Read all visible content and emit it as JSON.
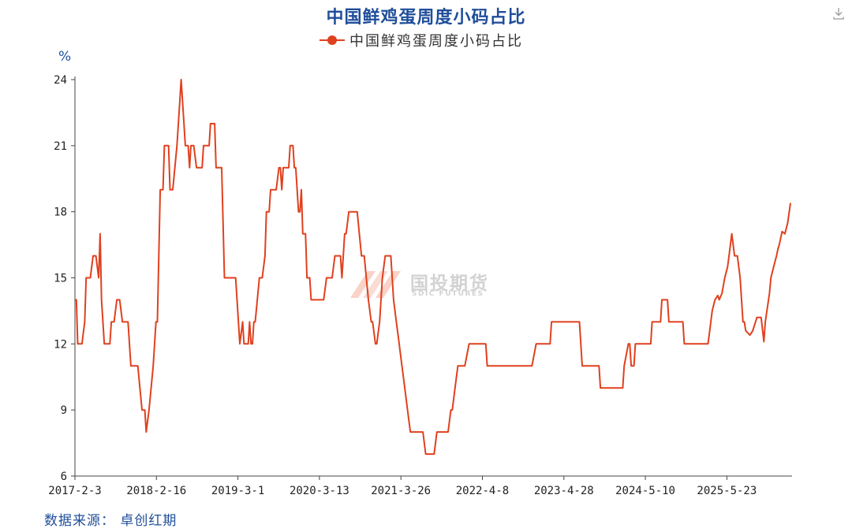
{
  "chart_data": {
    "type": "line",
    "title": "中国鲜鸡蛋周度小码占比",
    "unit_label": "%",
    "legend_position": "top-center",
    "grid": false,
    "ylim": [
      6,
      24
    ],
    "yticks": [
      "6",
      "9",
      "12",
      "15",
      "18",
      "21",
      "24"
    ],
    "xticks": [
      "2017-2-3",
      "2018-2-16",
      "2019-3-1",
      "2020-3-13",
      "2021-3-26",
      "2022-4-8",
      "2023-4-28",
      "2024-5-10",
      "2025-5-23"
    ],
    "series": [
      {
        "name": "中国鲜鸡蛋周度小码占比",
        "color": "#e0401e",
        "points": [
          [
            "2017-02-03",
            14
          ],
          [
            "2017-02-10",
            14
          ],
          [
            "2017-02-17",
            12
          ],
          [
            "2017-03-10",
            12
          ],
          [
            "2017-03-24",
            13
          ],
          [
            "2017-03-31",
            15
          ],
          [
            "2017-04-21",
            15
          ],
          [
            "2017-05-05",
            16
          ],
          [
            "2017-05-19",
            16
          ],
          [
            "2017-06-02",
            15
          ],
          [
            "2017-06-09",
            17
          ],
          [
            "2017-06-16",
            14
          ],
          [
            "2017-06-30",
            12
          ],
          [
            "2017-07-28",
            12
          ],
          [
            "2017-08-04",
            13
          ],
          [
            "2017-08-18",
            13
          ],
          [
            "2017-09-01",
            14
          ],
          [
            "2017-09-15",
            14
          ],
          [
            "2017-09-29",
            13
          ],
          [
            "2017-10-27",
            13
          ],
          [
            "2017-11-10",
            11
          ],
          [
            "2017-12-15",
            11
          ],
          [
            "2018-01-05",
            9
          ],
          [
            "2018-01-19",
            9
          ],
          [
            "2018-01-26",
            8
          ],
          [
            "2018-02-09",
            9
          ],
          [
            "2018-03-02",
            11
          ],
          [
            "2018-03-16",
            13
          ],
          [
            "2018-03-23",
            13
          ],
          [
            "2018-04-06",
            19
          ],
          [
            "2018-04-20",
            19
          ],
          [
            "2018-04-27",
            21
          ],
          [
            "2018-05-18",
            21
          ],
          [
            "2018-05-25",
            19
          ],
          [
            "2018-06-08",
            19
          ],
          [
            "2018-06-29",
            21
          ],
          [
            "2018-07-13",
            23
          ],
          [
            "2018-07-20",
            24
          ],
          [
            "2018-08-03",
            22
          ],
          [
            "2018-08-10",
            21
          ],
          [
            "2018-08-24",
            21
          ],
          [
            "2018-08-31",
            20
          ],
          [
            "2018-09-07",
            21
          ],
          [
            "2018-09-21",
            21
          ],
          [
            "2018-10-05",
            20
          ],
          [
            "2018-11-02",
            20
          ],
          [
            "2018-11-09",
            21
          ],
          [
            "2018-12-07",
            21
          ],
          [
            "2018-12-14",
            22
          ],
          [
            "2019-01-04",
            22
          ],
          [
            "2019-01-11",
            20
          ],
          [
            "2019-02-08",
            20
          ],
          [
            "2019-02-22",
            15
          ],
          [
            "2019-04-19",
            15
          ],
          [
            "2019-05-10",
            12
          ],
          [
            "2019-05-24",
            13
          ],
          [
            "2019-05-31",
            12
          ],
          [
            "2019-06-21",
            12
          ],
          [
            "2019-06-28",
            13
          ],
          [
            "2019-07-05",
            12
          ],
          [
            "2019-07-12",
            12
          ],
          [
            "2019-07-19",
            13
          ],
          [
            "2019-07-26",
            13
          ],
          [
            "2019-08-16",
            15
          ],
          [
            "2019-08-30",
            15
          ],
          [
            "2019-09-13",
            16
          ],
          [
            "2019-09-20",
            18
          ],
          [
            "2019-10-04",
            18
          ],
          [
            "2019-10-11",
            19
          ],
          [
            "2019-11-08",
            19
          ],
          [
            "2019-11-22",
            20
          ],
          [
            "2019-11-29",
            20
          ],
          [
            "2019-12-06",
            19
          ],
          [
            "2019-12-13",
            20
          ],
          [
            "2020-01-10",
            20
          ],
          [
            "2020-01-17",
            21
          ],
          [
            "2020-01-31",
            21
          ],
          [
            "2020-02-07",
            20
          ],
          [
            "2020-02-14",
            20
          ],
          [
            "2020-02-28",
            18
          ],
          [
            "2020-03-06",
            18
          ],
          [
            "2020-03-13",
            19
          ],
          [
            "2020-03-20",
            17
          ],
          [
            "2020-04-03",
            17
          ],
          [
            "2020-04-10",
            15
          ],
          [
            "2020-04-24",
            15
          ],
          [
            "2020-05-01",
            14
          ],
          [
            "2020-07-03",
            14
          ],
          [
            "2020-07-17",
            15
          ],
          [
            "2020-08-14",
            15
          ],
          [
            "2020-08-28",
            16
          ],
          [
            "2020-09-25",
            16
          ],
          [
            "2020-10-02",
            15
          ],
          [
            "2020-10-16",
            17
          ],
          [
            "2020-10-23",
            17
          ],
          [
            "2020-11-06",
            18
          ],
          [
            "2020-12-18",
            18
          ],
          [
            "2021-01-08",
            16
          ],
          [
            "2021-01-22",
            16
          ],
          [
            "2021-02-12",
            14
          ],
          [
            "2021-02-26",
            13
          ],
          [
            "2021-03-05",
            13
          ],
          [
            "2021-03-19",
            12
          ],
          [
            "2021-03-26",
            12
          ],
          [
            "2021-04-09",
            13
          ],
          [
            "2021-04-23",
            15
          ],
          [
            "2021-05-07",
            16
          ],
          [
            "2021-06-04",
            16
          ],
          [
            "2021-06-18",
            14
          ],
          [
            "2021-07-02",
            13
          ],
          [
            "2021-07-16",
            12
          ],
          [
            "2021-07-30",
            11
          ],
          [
            "2021-08-13",
            10
          ],
          [
            "2021-08-27",
            9
          ],
          [
            "2021-09-10",
            8
          ],
          [
            "2021-11-12",
            8
          ],
          [
            "2021-11-26",
            7
          ],
          [
            "2022-01-07",
            7
          ],
          [
            "2022-01-21",
            8
          ],
          [
            "2022-03-18",
            8
          ],
          [
            "2022-04-01",
            9
          ],
          [
            "2022-04-08",
            9
          ],
          [
            "2022-04-22",
            10
          ],
          [
            "2022-05-06",
            11
          ],
          [
            "2022-06-10",
            11
          ],
          [
            "2022-07-01",
            12
          ],
          [
            "2022-09-23",
            12
          ],
          [
            "2022-09-30",
            11
          ],
          [
            "2023-05-12",
            11
          ],
          [
            "2023-06-02",
            12
          ],
          [
            "2023-08-11",
            12
          ],
          [
            "2023-08-18",
            13
          ],
          [
            "2023-10-27",
            13
          ],
          [
            "2024-01-05",
            13
          ],
          [
            "2024-01-19",
            11
          ],
          [
            "2024-04-12",
            11
          ],
          [
            "2024-04-19",
            10
          ],
          [
            "2024-08-09",
            10
          ],
          [
            "2024-08-16",
            11
          ],
          [
            "2024-09-06",
            12
          ],
          [
            "2024-09-13",
            12
          ],
          [
            "2024-09-20",
            11
          ],
          [
            "2024-10-04",
            11
          ],
          [
            "2024-10-11",
            12
          ],
          [
            "2024-12-27",
            12
          ],
          [
            "2025-01-03",
            13
          ],
          [
            "2025-02-14",
            13
          ],
          [
            "2025-02-21",
            14
          ],
          [
            "2025-03-21",
            14
          ],
          [
            "2025-03-28",
            13
          ],
          [
            "2025-06-06",
            13
          ],
          [
            "2025-06-13",
            12
          ],
          [
            "2025-10-10",
            12
          ],
          [
            "2025-10-17",
            12.5
          ],
          [
            "2025-10-31",
            13.5
          ],
          [
            "2025-11-14",
            14
          ],
          [
            "2025-11-28",
            14.2
          ],
          [
            "2025-12-05",
            14
          ],
          [
            "2025-12-19",
            14.3
          ],
          [
            "2026-01-02",
            15
          ],
          [
            "2026-01-16",
            15.5
          ],
          [
            "2026-01-23",
            16
          ],
          [
            "2026-02-06",
            17
          ],
          [
            "2026-02-20",
            16
          ],
          [
            "2026-03-06",
            16
          ],
          [
            "2026-03-20",
            15
          ],
          [
            "2026-04-03",
            13
          ],
          [
            "2026-04-10",
            13
          ],
          [
            "2026-04-17",
            12.6
          ],
          [
            "2026-05-08",
            12.4
          ],
          [
            "2026-05-22",
            12.6
          ],
          [
            "2026-06-12",
            13.2
          ],
          [
            "2026-07-03",
            13.2
          ],
          [
            "2026-07-17",
            12.1
          ],
          [
            "2026-07-24",
            13
          ],
          [
            "2026-08-14",
            14.3
          ],
          [
            "2026-08-21",
            15
          ],
          [
            "2026-09-04",
            15.5
          ],
          [
            "2026-09-18",
            16
          ],
          [
            "2026-09-25",
            16.3
          ],
          [
            "2026-10-02",
            16.5
          ],
          [
            "2026-10-09",
            16.8
          ],
          [
            "2026-10-16",
            17.1
          ],
          [
            "2026-10-30",
            17
          ],
          [
            "2026-11-13",
            17.5
          ],
          [
            "2026-11-27",
            18.4
          ]
        ]
      }
    ]
  },
  "source_text": "数据来源：  卓创红期",
  "watermark": {
    "name": "国投期货",
    "subtitle": "SDIC FUTURES"
  },
  "icons": {
    "download": "download-icon"
  }
}
